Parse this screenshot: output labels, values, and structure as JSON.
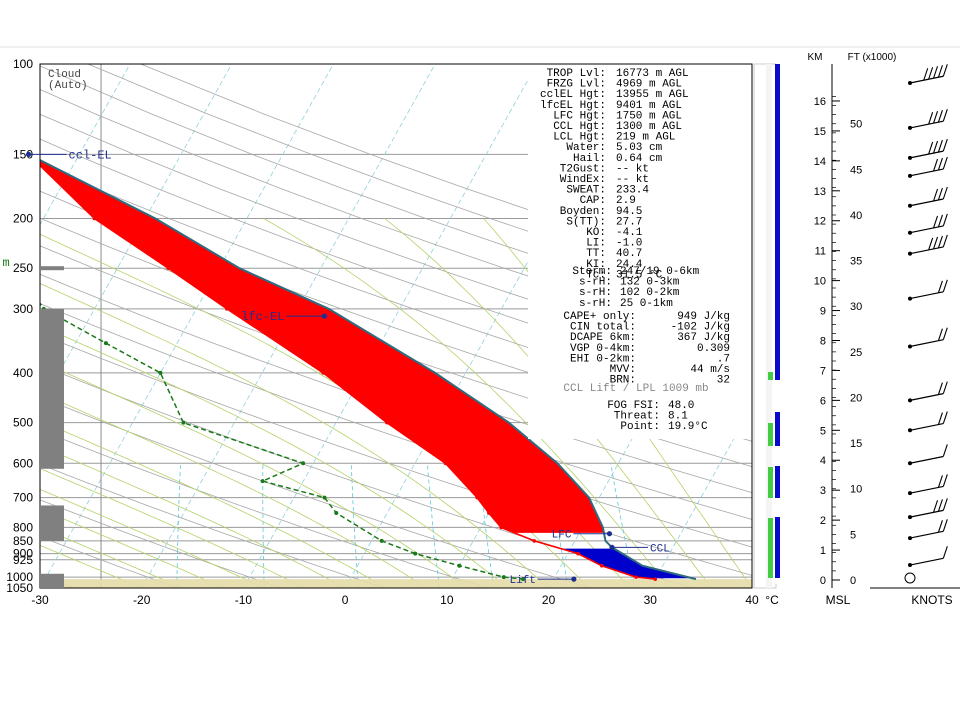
{
  "cloud_label": "Cloud",
  "cloud_sub": "(Auto)",
  "x_unit": "°C",
  "msl_label": "MSL",
  "knots_label": "KNOTS",
  "km_label": "KM",
  "ft_label": "FT (x1000)",
  "colors": {
    "temp": "#ff0000",
    "dewpoint": "#1a7a1a",
    "parcel": "#1f3f8f",
    "cape_fill": "#ff0000",
    "cin_fill": "#0000cc",
    "cloud_top_fill": "#00e5ee",
    "ground": "#e6dca8",
    "dry_adiabat": "#a7a7a7",
    "moist_adiabat": "#b5d26a",
    "mixing_ratio": "#5cc9d6"
  },
  "indices": [
    {
      "label": "TROP Lvl:",
      "value": "16773 m AGL"
    },
    {
      "label": "FRZG Lvl:",
      "value": "4969 m AGL"
    },
    {
      "label": "cclEL Hgt:",
      "value": "13955 m AGL"
    },
    {
      "label": "lfcEL Hgt:",
      "value": "9401 m AGL"
    },
    {
      "label": "LFC Hgt:",
      "value": "1750 m AGL"
    },
    {
      "label": "CCL Hgt:",
      "value": "1300 m AGL"
    },
    {
      "label": "LCL Hgt:",
      "value": "219 m AGL"
    },
    {
      "label": "Water:",
      "value": "5.03 cm"
    },
    {
      "label": "Hail:",
      "value": "0.64 cm"
    },
    {
      "label": "T2Gust:",
      "value": "-- kt"
    },
    {
      "label": "WindEx:",
      "value": "-- kt"
    },
    {
      "label": "SWEAT:",
      "value": "233.4"
    },
    {
      "label": "CAP:",
      "value": "2.9"
    },
    {
      "label": "Boyden:",
      "value": "94.5"
    },
    {
      "label": "S(TT):",
      "value": "27.7"
    },
    {
      "label": "KO:",
      "value": "-4.1"
    },
    {
      "label": "LI:",
      "value": "-1.0"
    },
    {
      "label": "TT:",
      "value": "40.7"
    },
    {
      "label": "KI:",
      "value": "24.4"
    },
    {
      "label": "Tc:",
      "value": "31.5 °C"
    }
  ],
  "storm": [
    {
      "label": "Storm:",
      "value": "247/19 0-6km"
    },
    {
      "label": "s-rH:",
      "value": "132  0-3km"
    },
    {
      "label": "s-rH:",
      "value": "102  0-2km"
    },
    {
      "label": "s-rH:",
      "value": "25  0-1km"
    }
  ],
  "cape": [
    {
      "label": "CAPE+ only:",
      "value": "949 J/kg"
    },
    {
      "label": "CIN total:",
      "value": "-102 J/kg"
    },
    {
      "label": "DCAPE 6km:",
      "value": "367 J/kg"
    },
    {
      "label": "VGP 0-4km:",
      "value": "0.309"
    },
    {
      "label": "EHI 0-2km:",
      "value": ".7"
    },
    {
      "label": "MVV:",
      "value": "44 m/s"
    },
    {
      "label": "BRN:",
      "value": "32"
    }
  ],
  "ccl_lift": "CCL Lift / LPL 1009 mb",
  "fog": [
    {
      "label": "FOG FSI:",
      "value": "48.0"
    },
    {
      "label": "Threat:",
      "value": "8.1"
    },
    {
      "label": "Point:",
      "value": "19.9°C"
    }
  ],
  "annotations": {
    "ccl_el": "ccl-EL",
    "lfc_el": "lfc-EL",
    "lfc": "LFC",
    "ccl": "CCL",
    "lift": "Lift",
    "m": "m"
  },
  "chart_data": {
    "type": "line",
    "title": "",
    "xlabel": "°C",
    "ylabel": "",
    "x_ticks": [
      -30,
      -20,
      -10,
      0,
      10,
      20,
      30,
      40
    ],
    "p_ticks": [
      100,
      150,
      200,
      250,
      300,
      400,
      500,
      600,
      700,
      800,
      850,
      900,
      925,
      1000,
      1050
    ],
    "xlim": [
      -30,
      40
    ],
    "plim": [
      100,
      1050
    ],
    "y_scale": "log",
    "skewed": true,
    "grid": true,
    "series": [
      {
        "role": "temperature",
        "points": [
          [
            100,
            -73
          ],
          [
            150,
            -55
          ],
          [
            200,
            -45
          ],
          [
            250,
            -35
          ],
          [
            300,
            -27
          ],
          [
            400,
            -14
          ],
          [
            500,
            -5
          ],
          [
            600,
            3
          ],
          [
            700,
            8
          ],
          [
            750,
            10
          ],
          [
            800,
            12
          ],
          [
            850,
            16
          ],
          [
            900,
            21
          ],
          [
            950,
            24
          ],
          [
            1000,
            28
          ],
          [
            1009,
            30
          ]
        ]
      },
      {
        "role": "dewpoint",
        "points": [
          [
            250,
            -50
          ],
          [
            300,
            -45
          ],
          [
            350,
            -37
          ],
          [
            400,
            -30
          ],
          [
            500,
            -25
          ],
          [
            600,
            -11
          ],
          [
            650,
            -14
          ],
          [
            700,
            -7
          ],
          [
            750,
            -5
          ],
          [
            850,
            1
          ],
          [
            900,
            5
          ],
          [
            950,
            10
          ],
          [
            1000,
            15
          ],
          [
            1009,
            17
          ]
        ]
      },
      {
        "role": "parcel",
        "points": [
          [
            150,
            -55
          ],
          [
            200,
            -39
          ],
          [
            250,
            -28
          ],
          [
            300,
            -17
          ],
          [
            400,
            -3
          ],
          [
            500,
            7
          ],
          [
            600,
            14
          ],
          [
            700,
            19
          ],
          [
            800,
            22
          ],
          [
            850,
            23
          ],
          [
            875,
            24
          ],
          [
            950,
            28
          ],
          [
            1009,
            34
          ]
        ]
      }
    ],
    "labeled_points": [
      {
        "label": "ccl-EL",
        "p": 150,
        "t": -55
      },
      {
        "label": "lfc-EL",
        "p": 310,
        "t": -17
      },
      {
        "label": "LFC",
        "p": 823,
        "t": 23
      },
      {
        "label": "CCL",
        "p": 875,
        "t": 24
      },
      {
        "label": "Lift",
        "p": 1009,
        "t": 22
      }
    ],
    "km_ticks": [
      0,
      1,
      2,
      3,
      4,
      5,
      6,
      7,
      8,
      9,
      10,
      11,
      12,
      13,
      14,
      15,
      16
    ],
    "ft_ticks": [
      0,
      5,
      10,
      15,
      20,
      25,
      30,
      35,
      40,
      45,
      50
    ],
    "wind_barbs": [
      {
        "km": 16.6,
        "spd": 45
      },
      {
        "km": 15.1,
        "spd": 40
      },
      {
        "km": 14.1,
        "spd": 35
      },
      {
        "km": 13.5,
        "spd": 30
      },
      {
        "km": 12.5,
        "spd": 25
      },
      {
        "km": 11.6,
        "spd": 30
      },
      {
        "km": 10.9,
        "spd": 35
      },
      {
        "km": 9.4,
        "spd": 15
      },
      {
        "km": 7.8,
        "spd": 20
      },
      {
        "km": 6.0,
        "spd": 20
      },
      {
        "km": 5.0,
        "spd": 15
      },
      {
        "km": 3.9,
        "spd": 10
      },
      {
        "km": 2.9,
        "spd": 20
      },
      {
        "km": 2.1,
        "spd": 25
      },
      {
        "km": 1.4,
        "spd": 20
      },
      {
        "km": 0.5,
        "spd": 10
      }
    ]
  }
}
